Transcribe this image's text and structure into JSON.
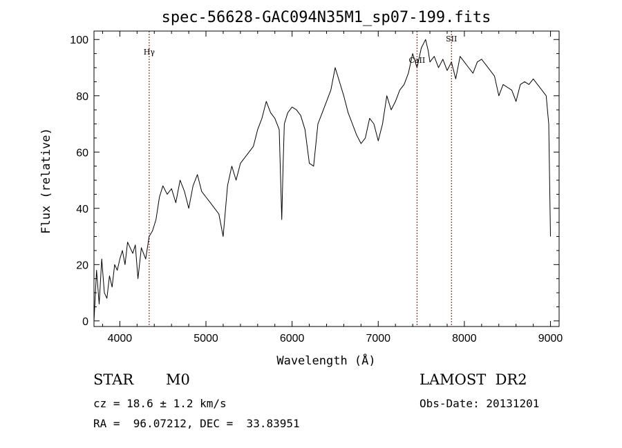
{
  "chart_data": {
    "type": "line",
    "title": "spec-56628-GAC094N35M1_sp07-199.fits",
    "xlabel": "Wavelength (Å)",
    "ylabel": "Flux (relative)",
    "xlim": [
      3700,
      9100
    ],
    "ylim": [
      -2,
      103
    ],
    "x_ticks": [
      4000,
      5000,
      6000,
      7000,
      8000,
      9000
    ],
    "y_ticks": [
      0,
      20,
      40,
      60,
      80,
      100
    ],
    "grid": false,
    "line_color": "#000000",
    "marker_color": "#8b0000",
    "spectral_lines": [
      {
        "label": "Hγ",
        "wavelength": 4341
      },
      {
        "label": "CaII",
        "wavelength": 7450
      },
      {
        "label": "SII",
        "wavelength": 7850
      }
    ],
    "series": [
      {
        "x": [
          3700,
          3730,
          3760,
          3790,
          3820,
          3850,
          3880,
          3910,
          3940,
          3970,
          4000,
          4030,
          4060,
          4090,
          4120,
          4150,
          4180,
          4210,
          4250,
          4300,
          4340,
          4380,
          4420,
          4460,
          4500,
          4550,
          4600,
          4650,
          4700,
          4750,
          4800,
          4850,
          4900,
          4950,
          5000,
          5050,
          5100,
          5150,
          5200,
          5250,
          5300,
          5350,
          5400,
          5450,
          5500,
          5550,
          5600,
          5650,
          5700,
          5750,
          5800,
          5850,
          5880,
          5895,
          5910,
          5950,
          6000,
          6050,
          6100,
          6150,
          6200,
          6250,
          6300,
          6350,
          6400,
          6450,
          6500,
          6550,
          6600,
          6650,
          6700,
          6750,
          6800,
          6850,
          6900,
          6950,
          7000,
          7050,
          7100,
          7150,
          7200,
          7250,
          7300,
          7350,
          7400,
          7450,
          7500,
          7550,
          7580,
          7600,
          7650,
          7700,
          7750,
          7800,
          7850,
          7900,
          7950,
          8000,
          8050,
          8100,
          8150,
          8200,
          8250,
          8300,
          8350,
          8400,
          8450,
          8500,
          8550,
          8600,
          8650,
          8700,
          8750,
          8800,
          8850,
          8900,
          8950,
          8980,
          9000
        ],
        "y": [
          0,
          18,
          6,
          22,
          10,
          8,
          16,
          12,
          20,
          18,
          22,
          25,
          20,
          28,
          26,
          24,
          27,
          15,
          26,
          22,
          30,
          32,
          36,
          44,
          48,
          45,
          47,
          42,
          50,
          46,
          40,
          48,
          52,
          46,
          44,
          42,
          40,
          38,
          30,
          48,
          55,
          50,
          56,
          58,
          60,
          62,
          68,
          72,
          78,
          74,
          72,
          68,
          36,
          55,
          70,
          74,
          76,
          75,
          73,
          68,
          56,
          55,
          70,
          74,
          78,
          82,
          90,
          85,
          80,
          74,
          70,
          66,
          63,
          65,
          72,
          70,
          64,
          70,
          80,
          75,
          78,
          82,
          84,
          88,
          95,
          90,
          97,
          100,
          96,
          92,
          94,
          90,
          93,
          89,
          92,
          86,
          94,
          92,
          90,
          88,
          92,
          93,
          91,
          89,
          87,
          80,
          84,
          83,
          82,
          78,
          84,
          85,
          84,
          86,
          84,
          82,
          80,
          70,
          30
        ]
      }
    ],
    "info": {
      "object": "STAR",
      "subclass": "M0",
      "survey": "LAMOST  DR2",
      "cz": "cz = 18.6 ± 1.2 km/s",
      "obs_date": "Obs-Date: 20131201",
      "coords": "RA =  96.07212, DEC =  33.83951"
    }
  }
}
